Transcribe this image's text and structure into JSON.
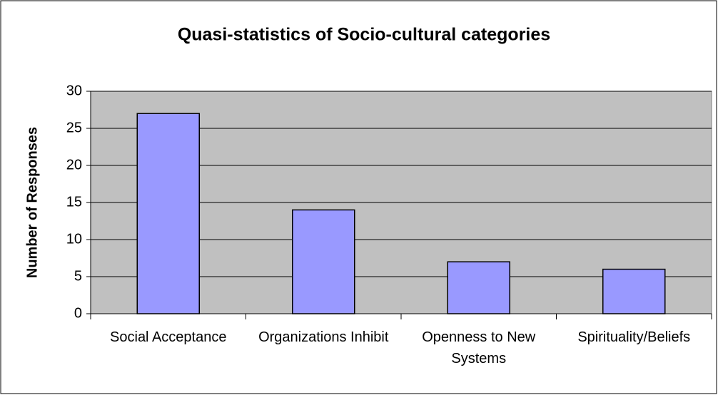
{
  "chart_data": {
    "type": "bar",
    "title": "Quasi-statistics of Socio-cultural categories",
    "y_label": "Number of Responses",
    "categories": [
      "Social Acceptance",
      "Organizations Inhibit",
      "Openness to New Systems",
      "Spirituality/Beliefs"
    ],
    "values": [
      27,
      14,
      7,
      6
    ],
    "color": "#9999ff",
    "ylim": [
      0,
      30
    ],
    "yticks": [
      0,
      5,
      10,
      15,
      20,
      25,
      30
    ],
    "grid": true
  }
}
